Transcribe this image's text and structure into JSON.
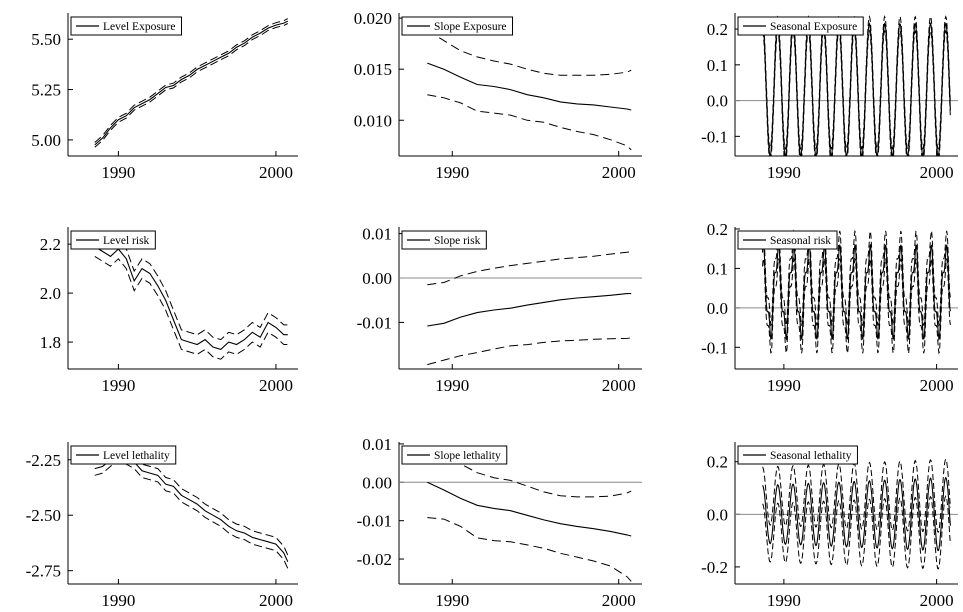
{
  "colors": {
    "ink": "#000000",
    "zero_line": "#8c8c8c",
    "background": "#ffffff"
  },
  "chart_data": [
    {
      "id": "level-exposure",
      "type": "line",
      "legend": "Level Exposure",
      "legend_position": "top-left",
      "xlim": [
        1986.8,
        2001.4
      ],
      "ylim": [
        4.92,
        5.63
      ],
      "xticks": [
        1990,
        2000
      ],
      "xtick_labels": [
        "1990",
        "2000"
      ],
      "yticks": [
        5.0,
        5.25,
        5.5
      ],
      "ytick_labels": [
        "5.00",
        "5.25",
        "5.50"
      ],
      "zero_line": false,
      "band_kind": "level",
      "x": [
        1988.5,
        1989,
        1989.5,
        1990,
        1990.5,
        1991,
        1991.5,
        1992,
        1992.5,
        1993,
        1993.5,
        1994,
        1994.5,
        1995,
        1995.5,
        1996,
        1996.5,
        1997,
        1997.5,
        1998,
        1998.5,
        1999,
        1999.5,
        2000,
        2000.5,
        2000.75
      ],
      "y": [
        4.975,
        5.01,
        5.06,
        5.1,
        5.12,
        5.16,
        5.18,
        5.2,
        5.23,
        5.26,
        5.27,
        5.3,
        5.32,
        5.35,
        5.37,
        5.39,
        5.41,
        5.43,
        5.46,
        5.48,
        5.51,
        5.53,
        5.555,
        5.57,
        5.58,
        5.59
      ],
      "band": 0.012
    },
    {
      "id": "slope-exposure",
      "type": "line",
      "legend": "Slope Exposure",
      "legend_position": "top-left",
      "xlim": [
        1986.8,
        2001.4
      ],
      "ylim": [
        0.0065,
        0.0205
      ],
      "xticks": [
        1990,
        2000
      ],
      "xtick_labels": [
        "1990",
        "2000"
      ],
      "yticks": [
        0.01,
        0.015,
        0.02
      ],
      "ytick_labels": [
        "0.010",
        "0.015",
        "0.020"
      ],
      "zero_line": false,
      "band_kind": "slope",
      "x": [
        1988.5,
        1989.5,
        1990.5,
        1991.5,
        1992.5,
        1993.5,
        1994.5,
        1995.5,
        1996.5,
        1997.5,
        1998.5,
        1999.5,
        2000.5,
        2000.75
      ],
      "y": [
        0.0156,
        0.015,
        0.0142,
        0.0135,
        0.0133,
        0.013,
        0.0125,
        0.0122,
        0.0118,
        0.0116,
        0.0115,
        0.0113,
        0.0111,
        0.011
      ],
      "upper": [
        0.0188,
        0.0178,
        0.0168,
        0.0162,
        0.0158,
        0.0155,
        0.015,
        0.0146,
        0.0144,
        0.0144,
        0.0144,
        0.0145,
        0.0147,
        0.0149
      ],
      "lower": [
        0.0125,
        0.0122,
        0.0117,
        0.0109,
        0.0107,
        0.0105,
        0.01,
        0.0098,
        0.0093,
        0.0089,
        0.0086,
        0.0081,
        0.0075,
        0.0071
      ]
    },
    {
      "id": "seasonal-exposure",
      "type": "line",
      "legend": "Seasonal Exposure",
      "legend_position": "top-left",
      "xlim": [
        1986.8,
        2001.4
      ],
      "ylim": [
        -0.155,
        0.245
      ],
      "xticks": [
        1990,
        2000
      ],
      "xtick_labels": [
        "1990",
        "2000"
      ],
      "yticks": [
        -0.1,
        0.0,
        0.1,
        0.2
      ],
      "ytick_labels": [
        "-0.1",
        "0.0",
        "0.1",
        "0.2"
      ],
      "zero_line": true,
      "band_kind": "seasonal",
      "x_start": 1988.6,
      "x_end": 2000.9,
      "cycles": 12.3,
      "amplitude": 0.185,
      "offset": 0.03,
      "band": 0.02,
      "noise": 0.0
    },
    {
      "id": "level-risk",
      "type": "line",
      "legend": "Level risk",
      "legend_position": "top-left",
      "xlim": [
        1986.8,
        2001.4
      ],
      "ylim": [
        1.69,
        2.27
      ],
      "xticks": [
        1990,
        2000
      ],
      "xtick_labels": [
        "1990",
        "2000"
      ],
      "yticks": [
        1.8,
        2.0,
        2.2
      ],
      "ytick_labels": [
        "1.8",
        "2.0",
        "2.2"
      ],
      "zero_line": false,
      "band_kind": "level",
      "x": [
        1988.5,
        1989,
        1989.5,
        1990,
        1990.5,
        1991,
        1991.5,
        1992,
        1992.5,
        1993,
        1993.5,
        1994,
        1994.5,
        1995,
        1995.5,
        1996,
        1996.5,
        1997,
        1997.5,
        1998,
        1998.5,
        1999,
        1999.5,
        2000,
        2000.5,
        2000.75
      ],
      "y": [
        2.19,
        2.17,
        2.15,
        2.18,
        2.14,
        2.05,
        2.1,
        2.08,
        2.03,
        1.97,
        1.89,
        1.81,
        1.8,
        1.79,
        1.81,
        1.78,
        1.77,
        1.8,
        1.79,
        1.81,
        1.84,
        1.82,
        1.88,
        1.86,
        1.83,
        1.83
      ],
      "band": 0.04
    },
    {
      "id": "slope-risk",
      "type": "line",
      "legend": "Slope risk",
      "legend_position": "top-left",
      "xlim": [
        1986.8,
        2001.4
      ],
      "ylim": [
        -0.0205,
        0.0115
      ],
      "xticks": [
        1990,
        2000
      ],
      "xtick_labels": [
        "1990",
        "2000"
      ],
      "yticks": [
        -0.01,
        0.0,
        0.01
      ],
      "ytick_labels": [
        "-0.01",
        "0.00",
        "0.01"
      ],
      "zero_line": true,
      "band_kind": "slope",
      "x": [
        1988.5,
        1989.5,
        1990.5,
        1991.5,
        1992.5,
        1993.5,
        1994.5,
        1995.5,
        1996.5,
        1997.5,
        1998.5,
        1999.5,
        2000.5,
        2000.75
      ],
      "y": [
        -0.0108,
        -0.0102,
        -0.0088,
        -0.0078,
        -0.0072,
        -0.0068,
        -0.0061,
        -0.0055,
        -0.0049,
        -0.0045,
        -0.0042,
        -0.0039,
        -0.0035,
        -0.0035
      ],
      "upper": [
        -0.0015,
        -0.001,
        0.0005,
        0.0015,
        0.0022,
        0.0028,
        0.0033,
        0.0038,
        0.0043,
        0.0046,
        0.0049,
        0.0054,
        0.0058,
        0.006
      ],
      "lower": [
        -0.0195,
        -0.0185,
        -0.0175,
        -0.0168,
        -0.016,
        -0.0153,
        -0.015,
        -0.0145,
        -0.0142,
        -0.014,
        -0.0138,
        -0.0137,
        -0.0136,
        -0.0135
      ]
    },
    {
      "id": "seasonal-risk",
      "type": "line",
      "legend": "Seasonal risk",
      "legend_position": "top-left",
      "xlim": [
        1986.8,
        2001.4
      ],
      "ylim": [
        -0.155,
        0.205
      ],
      "xticks": [
        1990,
        2000
      ],
      "xtick_labels": [
        "1990",
        "2000"
      ],
      "yticks": [
        -0.1,
        0.0,
        0.1,
        0.2
      ],
      "ytick_labels": [
        "-0.1",
        "0.0",
        "0.1",
        "0.2"
      ],
      "zero_line": true,
      "band_kind": "seasonal",
      "x_start": 1988.6,
      "x_end": 2000.9,
      "cycles": 12.3,
      "amplitude": 0.1,
      "offset": 0.04,
      "band": 0.035,
      "noise": 0.03
    },
    {
      "id": "level-lethality",
      "type": "line",
      "legend": "Level lethality",
      "legend_position": "top-left",
      "xlim": [
        1986.8,
        2001.4
      ],
      "ylim": [
        -2.81,
        -2.17
      ],
      "xticks": [
        1990,
        2000
      ],
      "xtick_labels": [
        "1990",
        "2000"
      ],
      "yticks": [
        -2.75,
        -2.5,
        -2.25
      ],
      "ytick_labels": [
        "-2.75",
        "-2.50",
        "-2.25"
      ],
      "zero_line": false,
      "band_kind": "level",
      "x": [
        1988.5,
        1989,
        1989.5,
        1990,
        1990.5,
        1991,
        1991.5,
        1992,
        1992.5,
        1993,
        1993.5,
        1994,
        1994.5,
        1995,
        1995.5,
        1996,
        1996.5,
        1997,
        1997.5,
        1998,
        1998.5,
        1999,
        1999.5,
        2000,
        2000.5,
        2000.75
      ],
      "y": [
        -2.29,
        -2.28,
        -2.25,
        -2.22,
        -2.24,
        -2.26,
        -2.3,
        -2.31,
        -2.32,
        -2.36,
        -2.37,
        -2.41,
        -2.43,
        -2.45,
        -2.48,
        -2.5,
        -2.52,
        -2.55,
        -2.57,
        -2.58,
        -2.6,
        -2.61,
        -2.62,
        -2.63,
        -2.67,
        -2.71
      ],
      "band": 0.03
    },
    {
      "id": "slope-lethality",
      "type": "line",
      "legend": "Slope lethality",
      "legend_position": "top-left",
      "xlim": [
        1986.8,
        2001.4
      ],
      "ylim": [
        -0.0265,
        0.0105
      ],
      "xticks": [
        1990,
        2000
      ],
      "xtick_labels": [
        "1990",
        "2000"
      ],
      "yticks": [
        -0.02,
        -0.01,
        0.0,
        0.01
      ],
      "ytick_labels": [
        "-0.02",
        "-0.01",
        "0.00",
        "0.01"
      ],
      "zero_line": true,
      "band_kind": "slope",
      "x": [
        1988.5,
        1989.5,
        1990.5,
        1991.5,
        1992.5,
        1993.5,
        1994.5,
        1995.5,
        1996.5,
        1997.5,
        1998.5,
        1999.5,
        2000.5,
        2000.75
      ],
      "y": [
        0.0,
        -0.002,
        -0.0042,
        -0.006,
        -0.0068,
        -0.0074,
        -0.0086,
        -0.0098,
        -0.0108,
        -0.0115,
        -0.0121,
        -0.0128,
        -0.0137,
        -0.014
      ],
      "upper": [
        0.0095,
        0.0075,
        0.0048,
        0.0025,
        0.0012,
        0.0005,
        -0.001,
        -0.0025,
        -0.0035,
        -0.0038,
        -0.0038,
        -0.0036,
        -0.0028,
        -0.0023
      ],
      "lower": [
        -0.0092,
        -0.0096,
        -0.0115,
        -0.0145,
        -0.0152,
        -0.0155,
        -0.0163,
        -0.0172,
        -0.0185,
        -0.0195,
        -0.0205,
        -0.0218,
        -0.0246,
        -0.0258
      ]
    },
    {
      "id": "seasonal-lethality",
      "type": "line",
      "legend": "Seasonal lethality",
      "legend_position": "top-left",
      "xlim": [
        1986.8,
        2001.4
      ],
      "ylim": [
        -0.265,
        0.275
      ],
      "xticks": [
        1990,
        2000
      ],
      "xtick_labels": [
        "1990",
        "2000"
      ],
      "yticks": [
        -0.2,
        0.0,
        0.2
      ],
      "ytick_labels": [
        "-0.2",
        "0.0",
        "0.2"
      ],
      "zero_line": true,
      "band_kind": "seasonal",
      "x_start": 1988.6,
      "x_end": 2000.9,
      "cycles": 12.3,
      "amplitude": 0.11,
      "offset": 0.0,
      "band": 0.07,
      "noise": 0.0,
      "amplitude_growth": 0.03
    }
  ]
}
